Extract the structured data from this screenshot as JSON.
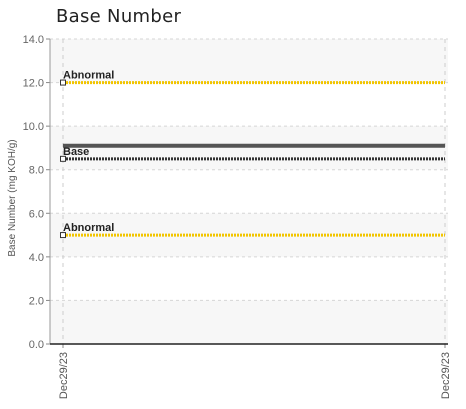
{
  "chart_data": {
    "type": "line",
    "title": "Base Number",
    "xlabel": "",
    "ylabel": "Base Number (mg KOH/g)",
    "ylim": [
      0,
      14
    ],
    "yticks": [
      "0.0",
      "2.0",
      "4.0",
      "6.0",
      "8.0",
      "10.0",
      "12.0",
      "14.0"
    ],
    "x_categories": [
      "Dec29/23",
      "Dec29/23"
    ],
    "grid": true,
    "legend": "none",
    "series": [
      {
        "name": "Abnormal",
        "values": [
          12.0,
          12.0
        ],
        "color": "#f2c500",
        "style": "dotted"
      },
      {
        "name": "",
        "values": [
          9.1,
          9.1
        ],
        "color": "#555555",
        "style": "solid"
      },
      {
        "name": "Base",
        "values": [
          8.5,
          8.5
        ],
        "color": "#333333",
        "style": "dotted"
      },
      {
        "name": "Abnormal",
        "values": [
          5.0,
          5.0
        ],
        "color": "#f2c500",
        "style": "dotted"
      }
    ]
  }
}
